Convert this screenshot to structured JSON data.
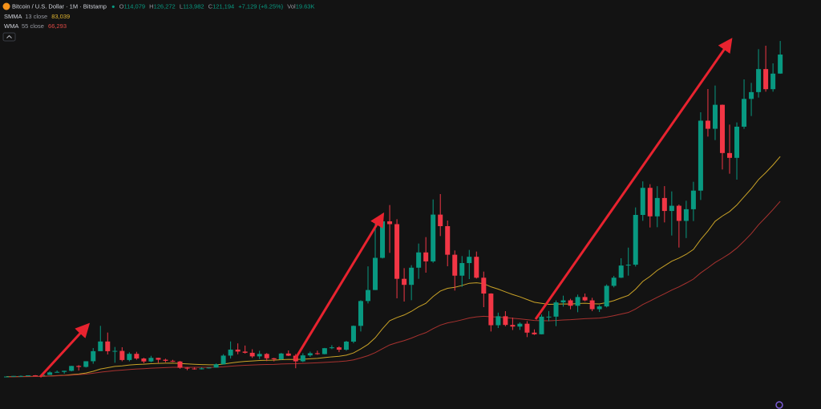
{
  "header": {
    "symbol": "Bitcoin / U.S. Dollar · 1M · Bitstamp",
    "ohlc": [
      {
        "label": "O",
        "value": "114,079"
      },
      {
        "label": "H",
        "value": "126,272"
      },
      {
        "label": "L",
        "value": "113,982"
      },
      {
        "label": "C",
        "value": "121,194"
      }
    ],
    "change": "+7,129 (+6.25%)",
    "volume": {
      "label": "Vol",
      "value": "19.63K"
    }
  },
  "chart_data": {
    "type": "candlestick",
    "open": [
      700,
      742,
      964,
      970,
      1190,
      1080,
      1350,
      2300,
      2480,
      2880,
      4700,
      4340,
      6470,
      10230,
      13860,
      10220,
      10330,
      6930,
      9240,
      7490,
      6390,
      7730,
      7030,
      6630,
      6370,
      4020,
      3740,
      3460,
      3810,
      4100,
      5320,
      8570,
      10820,
      10080,
      9630,
      8290,
      9200,
      7570,
      7190,
      9350,
      8540,
      6440,
      8660,
      9460,
      9140,
      11350,
      11660,
      10780,
      13800,
      19700,
      28990,
      33110,
      45140,
      58800,
      57750,
      37300,
      35040,
      41460,
      47170,
      43820,
      61320,
      57000,
      46310,
      38480,
      43190,
      45540,
      37710,
      31790,
      19940,
      23300,
      20050,
      19430,
      20500,
      17170,
      16550,
      23140,
      23150,
      28480,
      29250,
      27220,
      30480,
      29230,
      25940,
      26970,
      34670,
      37720,
      42270,
      42580,
      61200,
      71330,
      60670,
      67530,
      62680,
      64630,
      58970,
      63330,
      70290,
      96450,
      93430,
      102400,
      84350,
      82550,
      94210,
      104600,
      107140,
      115760,
      108240,
      114079
    ],
    "high": [
      755,
      980,
      1150,
      1210,
      1290,
      1350,
      2760,
      2990,
      2920,
      4760,
      5000,
      6470,
      11400,
      19700,
      17200,
      11800,
      11700,
      9800,
      9990,
      7780,
      8490,
      7780,
      7420,
      7000,
      6570,
      4310,
      4080,
      4200,
      4150,
      5640,
      9100,
      13880,
      13150,
      12330,
      10950,
      10370,
      9530,
      7750,
      9580,
      10500,
      9180,
      9460,
      10070,
      10430,
      11450,
      12470,
      12070,
      14100,
      19850,
      29300,
      41950,
      58350,
      61780,
      64900,
      59600,
      41300,
      42400,
      50500,
      52900,
      67000,
      69000,
      59100,
      47900,
      45800,
      48100,
      47500,
      40000,
      31900,
      24650,
      25200,
      22800,
      21000,
      21460,
      18390,
      23950,
      25250,
      29200,
      31000,
      29820,
      31400,
      31800,
      30200,
      27500,
      35200,
      38400,
      45000,
      48970,
      64000,
      73750,
      72700,
      71950,
      71980,
      70000,
      65100,
      66500,
      73600,
      99600,
      108300,
      109600,
      102500,
      95000,
      95800,
      111900,
      110600,
      123200,
      124500,
      117900,
      126272
    ],
    "low": [
      700,
      740,
      750,
      940,
      890,
      1080,
      1340,
      2200,
      1830,
      2670,
      2980,
      4110,
      5520,
      10900,
      9000,
      5900,
      6450,
      6430,
      7040,
      5750,
      6070,
      5880,
      6080,
      6200,
      3650,
      3130,
      3350,
      3390,
      3730,
      4090,
      5320,
      7480,
      9060,
      9320,
      7710,
      7300,
      6520,
      6430,
      6850,
      8400,
      3850,
      6150,
      8110,
      8900,
      9040,
      11000,
      9880,
      10380,
      13200,
      17600,
      28100,
      33100,
      44900,
      47000,
      30000,
      28800,
      29300,
      37300,
      39600,
      43300,
      53300,
      42000,
      32900,
      34300,
      37200,
      37400,
      26700,
      17600,
      18900,
      19550,
      18150,
      18200,
      15500,
      16300,
      16500,
      21400,
      19600,
      26900,
      25900,
      24800,
      28900,
      25200,
      24900,
      26600,
      34100,
      37600,
      38500,
      41900,
      59000,
      56500,
      56600,
      58400,
      53500,
      49000,
      52550,
      58900,
      66800,
      90500,
      89200,
      78200,
      76600,
      74400,
      93400,
      98200,
      105100,
      107300,
      107300,
      113982
    ],
    "close": [
      742,
      964,
      970,
      1190,
      1080,
      1350,
      2300,
      2480,
      2880,
      4700,
      4340,
      6470,
      10230,
      13860,
      10220,
      10330,
      6930,
      9240,
      7490,
      6390,
      7730,
      7030,
      6630,
      6370,
      4020,
      3740,
      3460,
      3810,
      4100,
      5320,
      8570,
      10820,
      10080,
      9630,
      8290,
      9200,
      7570,
      7190,
      9350,
      8540,
      6440,
      8660,
      9460,
      9140,
      11350,
      11660,
      10780,
      13800,
      19700,
      28990,
      33110,
      45140,
      58800,
      57750,
      37300,
      35040,
      41460,
      47170,
      43820,
      61320,
      57000,
      46310,
      38480,
      43190,
      45540,
      37710,
      31790,
      19940,
      23300,
      20050,
      19430,
      20500,
      17170,
      16550,
      23140,
      23150,
      28480,
      29250,
      27220,
      30480,
      29230,
      25940,
      26970,
      34670,
      37720,
      42270,
      42580,
      61200,
      71330,
      60670,
      67530,
      62680,
      64630,
      58970,
      63330,
      70290,
      96450,
      93430,
      102400,
      84350,
      82550,
      94210,
      104600,
      107140,
      115760,
      108240,
      114060,
      121194
    ],
    "up_color": "#089981",
    "down_color": "#f23645",
    "ylim": [
      0,
      141600
    ],
    "series": [
      {
        "name": "SMMA",
        "params": "13 close",
        "value_label": "83,039",
        "color": "#c9a227",
        "values": [
          704,
          724,
          743,
          777,
          800,
          842,
          954,
          1071,
          1210,
          1479,
          1699,
          2066,
          2694,
          3553,
          4066,
          4548,
          4731,
          5078,
          5263,
          5350,
          5533,
          5648,
          5724,
          5774,
          5639,
          5493,
          5337,
          5220,
          5134,
          5148,
          5411,
          5827,
          6154,
          6421,
          6564,
          6766,
          6827,
          6855,
          7047,
          7162,
          7106,
          7225,
          7396,
          7530,
          7824,
          8118,
          8322,
          8743,
          9585,
          11078,
          12773,
          15262,
          18611,
          21622,
          22828,
          23767,
          25128,
          26826,
          28133,
          30686,
          32710,
          33756,
          34119,
          34817,
          35643,
          35803,
          35497,
          34301,
          33455,
          32425,
          31426,
          30585,
          29552,
          28552,
          28135,
          27751,
          27807,
          27919,
          27865,
          28065,
          28154,
          27984,
          27906,
          28427,
          29142,
          30154,
          31110,
          33424,
          36340,
          38211,
          40467,
          42176,
          43904,
          45063,
          46468,
          48301,
          52005,
          55192,
          58823,
          60786,
          62461,
          64904,
          67970,
          70983,
          74427,
          77029,
          79878,
          83039
        ]
      },
      {
        "name": "WMA",
        "params": "55 close",
        "value_label": "66,293",
        "color": "#a8322f",
        "values": [
          600,
          650,
          690,
          730,
          760,
          810,
          900,
          1000,
          1110,
          1290,
          1450,
          1660,
          1970,
          2380,
          2680,
          2970,
          3150,
          3390,
          3560,
          3690,
          3860,
          3990,
          4100,
          4190,
          4200,
          4200,
          4190,
          4190,
          4200,
          4250,
          4400,
          4620,
          4800,
          4960,
          5060,
          5180,
          5250,
          5300,
          5430,
          5520,
          5550,
          5650,
          5770,
          5870,
          6030,
          6200,
          6330,
          6570,
          6980,
          7720,
          8560,
          9690,
          11160,
          12570,
          13420,
          14170,
          15110,
          16220,
          17170,
          18670,
          19970,
          20810,
          21320,
          21960,
          22660,
          23070,
          23290,
          23100,
          23000,
          22780,
          22520,
          22330,
          22020,
          21700,
          21640,
          21590,
          21730,
          21900,
          22000,
          22200,
          22400,
          22500,
          22600,
          23000,
          23500,
          24100,
          24700,
          26000,
          27700,
          29000,
          30400,
          31700,
          33100,
          34300,
          35700,
          37200,
          39500,
          41400,
          43400,
          45000,
          46700,
          48800,
          51400,
          54200,
          57500,
          60300,
          63200,
          66293
        ]
      }
    ]
  }
}
